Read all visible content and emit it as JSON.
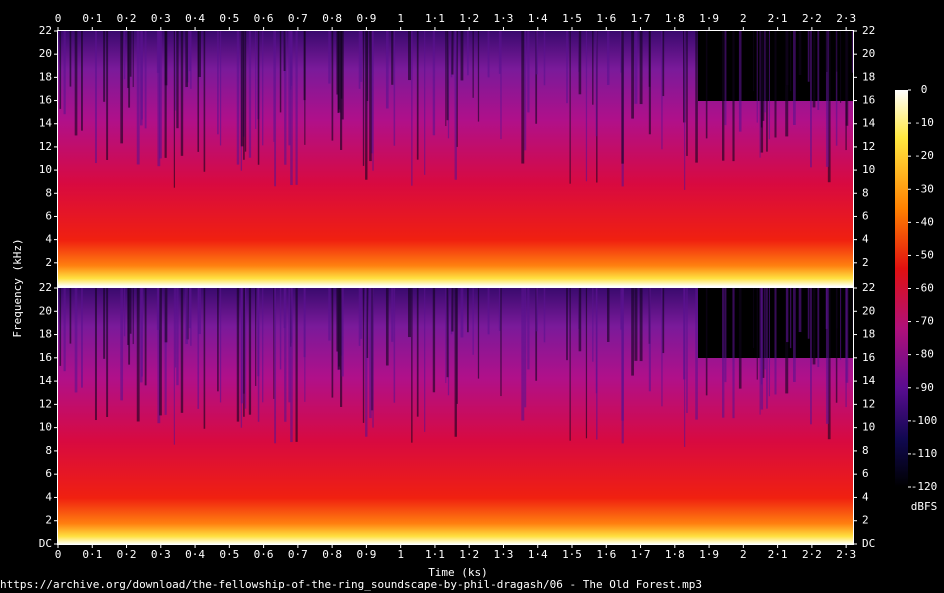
{
  "chart_data": [
    {
      "type": "spectrogram",
      "xlim": [
        0,
        2.32
      ],
      "ylim": [
        0,
        22
      ],
      "xticks": [
        0,
        {
          "value": 0.1,
          "label": "0·1"
        },
        {
          "value": 0.2,
          "label": "0·2"
        },
        {
          "value": 0.3,
          "label": "0·3"
        },
        {
          "value": 0.4,
          "label": "0·4"
        },
        {
          "value": 0.5,
          "label": "0·5"
        },
        {
          "value": 0.6,
          "label": "0·6"
        },
        {
          "value": 0.7,
          "label": "0·7"
        },
        {
          "value": 0.8,
          "label": "0·8"
        },
        {
          "value": 0.9,
          "label": "0·9"
        },
        1,
        {
          "value": 1.1,
          "label": "1·1"
        },
        {
          "value": 1.2,
          "label": "1·2"
        },
        {
          "value": 1.3,
          "label": "1·3"
        },
        {
          "value": 1.4,
          "label": "1·4"
        },
        {
          "value": 1.5,
          "label": "1·5"
        },
        {
          "value": 1.6,
          "label": "1·6"
        },
        {
          "value": 1.7,
          "label": "1·7"
        },
        {
          "value": 1.8,
          "label": "1·8"
        },
        {
          "value": 1.9,
          "label": "1·9"
        },
        2,
        {
          "value": 2.1,
          "label": "2·1"
        },
        {
          "value": 2.2,
          "label": "2·2"
        },
        {
          "value": 2.3,
          "label": "2·3"
        }
      ],
      "yticks": [
        2,
        4,
        6,
        8,
        10,
        12,
        14,
        16,
        18,
        20,
        22
      ]
    },
    {
      "type": "spectrogram",
      "xlim": [
        0,
        2.32
      ],
      "ylim": [
        0,
        22
      ],
      "xlabel": "Time (ks)",
      "ylabel": "Frequency (kHz)",
      "xticks": [
        0,
        {
          "value": 0.1,
          "label": "0·1"
        },
        {
          "value": 0.2,
          "label": "0·2"
        },
        {
          "value": 0.3,
          "label": "0·3"
        },
        {
          "value": 0.4,
          "label": "0·4"
        },
        {
          "value": 0.5,
          "label": "0·5"
        },
        {
          "value": 0.6,
          "label": "0·6"
        },
        {
          "value": 0.7,
          "label": "0·7"
        },
        {
          "value": 0.8,
          "label": "0·8"
        },
        {
          "value": 0.9,
          "label": "0·9"
        },
        1,
        {
          "value": 1.1,
          "label": "1·1"
        },
        {
          "value": 1.2,
          "label": "1·2"
        },
        {
          "value": 1.3,
          "label": "1·3"
        },
        {
          "value": 1.4,
          "label": "1·4"
        },
        {
          "value": 1.5,
          "label": "1·5"
        },
        {
          "value": 1.6,
          "label": "1·6"
        },
        {
          "value": 1.7,
          "label": "1·7"
        },
        {
          "value": 1.8,
          "label": "1·8"
        },
        {
          "value": 1.9,
          "label": "1·9"
        },
        2,
        {
          "value": 2.1,
          "label": "2·1"
        },
        {
          "value": 2.2,
          "label": "2·2"
        },
        {
          "value": 2.3,
          "label": "2·3"
        }
      ],
      "yticks": [
        {
          "value": 0,
          "label": "DC"
        },
        2,
        4,
        6,
        8,
        10,
        12,
        14,
        16,
        18,
        20,
        22
      ],
      "colorbar": {
        "label": "dBFS",
        "lim": [
          -120,
          0
        ],
        "ticks": [
          0,
          -10,
          -20,
          -30,
          -40,
          -50,
          -60,
          -70,
          -80,
          -90,
          -100,
          -110,
          -120
        ]
      }
    }
  ],
  "footer": "https://archive.org/download/the-fellowship-of-the-ring_soundscape-by-phil-dragash/06 - The Old Forest.mp3"
}
